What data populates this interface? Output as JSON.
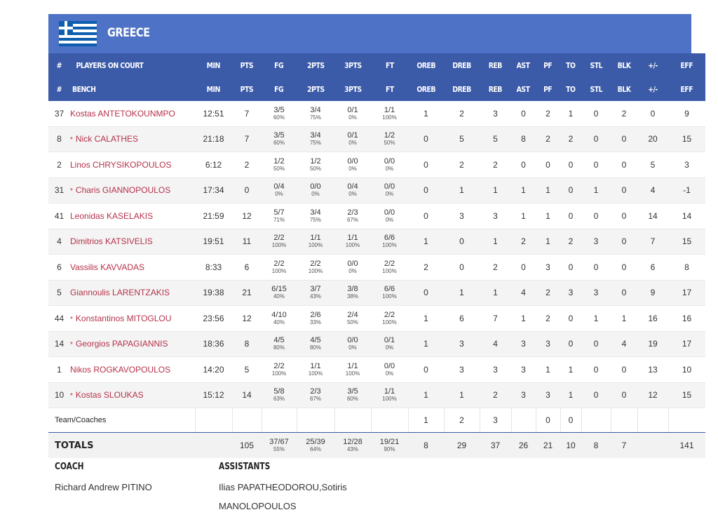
{
  "team": {
    "name": "GREECE"
  },
  "headers": {
    "row1": [
      "#",
      "PLAYERS ON COURT",
      "MIN",
      "PTS",
      "FG",
      "2PTS",
      "3PTS",
      "FT",
      "OREB",
      "DREB",
      "REB",
      "AST",
      "PF",
      "TO",
      "STL",
      "BLK",
      "+/-",
      "EFF"
    ],
    "row2": [
      "#",
      "BENCH",
      "MIN",
      "PTS",
      "FG",
      "2PTS",
      "3PTS",
      "FT",
      "OREB",
      "DREB",
      "REB",
      "AST",
      "PF",
      "TO",
      "STL",
      "BLK",
      "+/-",
      "EFF"
    ]
  },
  "players": [
    {
      "num": "37",
      "starter": false,
      "name": "Kostas ANTETOKOUNMPO",
      "min": "12:51",
      "pts": "7",
      "fg": "3/5",
      "fg_pct": "60%",
      "p2": "3/4",
      "p2_pct": "75%",
      "p3": "0/1",
      "p3_pct": "0%",
      "ft": "1/1",
      "ft_pct": "100%",
      "oreb": "1",
      "dreb": "2",
      "reb": "3",
      "ast": "0",
      "pf": "2",
      "to": "1",
      "stl": "0",
      "blk": "2",
      "pm": "0",
      "eff": "9"
    },
    {
      "num": "8",
      "starter": true,
      "name": "Nick CALATHES",
      "min": "21:18",
      "pts": "7",
      "fg": "3/5",
      "fg_pct": "60%",
      "p2": "3/4",
      "p2_pct": "75%",
      "p3": "0/1",
      "p3_pct": "0%",
      "ft": "1/2",
      "ft_pct": "50%",
      "oreb": "0",
      "dreb": "5",
      "reb": "5",
      "ast": "8",
      "pf": "2",
      "to": "2",
      "stl": "0",
      "blk": "0",
      "pm": "20",
      "eff": "15"
    },
    {
      "num": "2",
      "starter": false,
      "name": "Linos CHRYSIKOPOULOS",
      "min": "6:12",
      "pts": "2",
      "fg": "1/2",
      "fg_pct": "50%",
      "p2": "1/2",
      "p2_pct": "50%",
      "p3": "0/0",
      "p3_pct": "0%",
      "ft": "0/0",
      "ft_pct": "0%",
      "oreb": "0",
      "dreb": "2",
      "reb": "2",
      "ast": "0",
      "pf": "0",
      "to": "0",
      "stl": "0",
      "blk": "0",
      "pm": "5",
      "eff": "3"
    },
    {
      "num": "31",
      "starter": true,
      "name": "Charis GIANNOPOULOS",
      "min": "17:34",
      "pts": "0",
      "fg": "0/4",
      "fg_pct": "0%",
      "p2": "0/0",
      "p2_pct": "0%",
      "p3": "0/4",
      "p3_pct": "0%",
      "ft": "0/0",
      "ft_pct": "0%",
      "oreb": "0",
      "dreb": "1",
      "reb": "1",
      "ast": "1",
      "pf": "1",
      "to": "0",
      "stl": "1",
      "blk": "0",
      "pm": "4",
      "eff": "-1"
    },
    {
      "num": "41",
      "starter": false,
      "name": "Leonidas KASELAKIS",
      "min": "21:59",
      "pts": "12",
      "fg": "5/7",
      "fg_pct": "71%",
      "p2": "3/4",
      "p2_pct": "75%",
      "p3": "2/3",
      "p3_pct": "67%",
      "ft": "0/0",
      "ft_pct": "0%",
      "oreb": "0",
      "dreb": "3",
      "reb": "3",
      "ast": "1",
      "pf": "1",
      "to": "0",
      "stl": "0",
      "blk": "0",
      "pm": "14",
      "eff": "14"
    },
    {
      "num": "4",
      "starter": false,
      "name": "Dimitrios KATSIVELIS",
      "min": "19:51",
      "pts": "11",
      "fg": "2/2",
      "fg_pct": "100%",
      "p2": "1/1",
      "p2_pct": "100%",
      "p3": "1/1",
      "p3_pct": "100%",
      "ft": "6/6",
      "ft_pct": "100%",
      "oreb": "1",
      "dreb": "0",
      "reb": "1",
      "ast": "2",
      "pf": "1",
      "to": "2",
      "stl": "3",
      "blk": "0",
      "pm": "7",
      "eff": "15"
    },
    {
      "num": "6",
      "starter": false,
      "name": "Vassilis KAVVADAS",
      "min": "8:33",
      "pts": "6",
      "fg": "2/2",
      "fg_pct": "100%",
      "p2": "2/2",
      "p2_pct": "100%",
      "p3": "0/0",
      "p3_pct": "0%",
      "ft": "2/2",
      "ft_pct": "100%",
      "oreb": "2",
      "dreb": "0",
      "reb": "2",
      "ast": "0",
      "pf": "3",
      "to": "0",
      "stl": "0",
      "blk": "0",
      "pm": "6",
      "eff": "8"
    },
    {
      "num": "5",
      "starter": false,
      "name": "Giannoulis LARENTZAKIS",
      "min": "19:38",
      "pts": "21",
      "fg": "6/15",
      "fg_pct": "40%",
      "p2": "3/7",
      "p2_pct": "43%",
      "p3": "3/8",
      "p3_pct": "38%",
      "ft": "6/6",
      "ft_pct": "100%",
      "oreb": "0",
      "dreb": "1",
      "reb": "1",
      "ast": "4",
      "pf": "2",
      "to": "3",
      "stl": "3",
      "blk": "0",
      "pm": "9",
      "eff": "17"
    },
    {
      "num": "44",
      "starter": true,
      "name": "Konstantinos MITOGLOU",
      "min": "23:56",
      "pts": "12",
      "fg": "4/10",
      "fg_pct": "40%",
      "p2": "2/6",
      "p2_pct": "33%",
      "p3": "2/4",
      "p3_pct": "50%",
      "ft": "2/2",
      "ft_pct": "100%",
      "oreb": "1",
      "dreb": "6",
      "reb": "7",
      "ast": "1",
      "pf": "2",
      "to": "0",
      "stl": "1",
      "blk": "1",
      "pm": "16",
      "eff": "16"
    },
    {
      "num": "14",
      "starter": true,
      "name": "Georgios PAPAGIANNIS",
      "min": "18:36",
      "pts": "8",
      "fg": "4/5",
      "fg_pct": "80%",
      "p2": "4/5",
      "p2_pct": "80%",
      "p3": "0/0",
      "p3_pct": "0%",
      "ft": "0/1",
      "ft_pct": "0%",
      "oreb": "1",
      "dreb": "3",
      "reb": "4",
      "ast": "3",
      "pf": "3",
      "to": "0",
      "stl": "0",
      "blk": "4",
      "pm": "19",
      "eff": "17"
    },
    {
      "num": "1",
      "starter": false,
      "name": "Nikos ROGKAVOPOULOS",
      "min": "14:20",
      "pts": "5",
      "fg": "2/2",
      "fg_pct": "100%",
      "p2": "1/1",
      "p2_pct": "100%",
      "p3": "1/1",
      "p3_pct": "100%",
      "ft": "0/0",
      "ft_pct": "0%",
      "oreb": "0",
      "dreb": "3",
      "reb": "3",
      "ast": "3",
      "pf": "1",
      "to": "1",
      "stl": "0",
      "blk": "0",
      "pm": "13",
      "eff": "10"
    },
    {
      "num": "10",
      "starter": true,
      "name": "Kostas SLOUKAS",
      "min": "15:12",
      "pts": "14",
      "fg": "5/8",
      "fg_pct": "63%",
      "p2": "2/3",
      "p2_pct": "67%",
      "p3": "3/5",
      "p3_pct": "60%",
      "ft": "1/1",
      "ft_pct": "100%",
      "oreb": "1",
      "dreb": "1",
      "reb": "2",
      "ast": "3",
      "pf": "3",
      "to": "1",
      "stl": "0",
      "blk": "0",
      "pm": "12",
      "eff": "15"
    }
  ],
  "team_row": {
    "label": "Team/Coaches",
    "oreb": "1",
    "dreb": "2",
    "reb": "3",
    "pf": "0",
    "to": "0"
  },
  "totals": {
    "label": "TOTALS",
    "pts": "105",
    "fg": "37/67",
    "fg_pct": "55%",
    "p2": "25/39",
    "p2_pct": "64%",
    "p3": "12/28",
    "p3_pct": "43%",
    "ft": "19/21",
    "ft_pct": "90%",
    "oreb": "8",
    "dreb": "29",
    "reb": "37",
    "ast": "26",
    "pf": "21",
    "to": "10",
    "stl": "8",
    "blk": "7",
    "eff": "141"
  },
  "coach": {
    "title": "COACH",
    "name": "Richard Andrew PITINO"
  },
  "assistants": {
    "title": "ASSISTANTS",
    "line1": "Ilias PAPATHEODOROU,Sotiris",
    "line2": "MANOLOPOULOS"
  },
  "colors": {
    "header_bar": "#4d72c6",
    "header_row": "#3b5aa8",
    "player_link": "#b5324a"
  },
  "starter_marker": "*"
}
